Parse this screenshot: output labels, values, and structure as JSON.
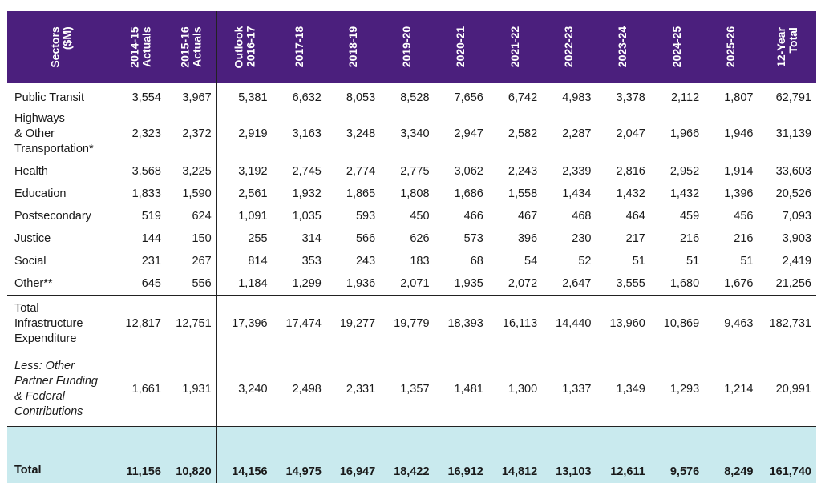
{
  "headers": [
    "Sectors\n($M)",
    "2014-15\nActuals",
    "2015-16\nActuals",
    "Outlook\n2016-17",
    "2017-18",
    "2018-19",
    "2019-20",
    "2020-21",
    "2021-22",
    "2022-23",
    "2023-24",
    "2024-25",
    "2025-26",
    "12-Year\nTotal"
  ],
  "rows": [
    {
      "label": "Public Transit",
      "values": [
        "3,554",
        "3,967",
        "5,381",
        "6,632",
        "8,053",
        "8,528",
        "7,656",
        "6,742",
        "4,983",
        "3,378",
        "2,112",
        "1,807",
        "62,791"
      ]
    },
    {
      "label": "Highways\n& Other\nTransportation*",
      "values": [
        "2,323",
        "2,372",
        "2,919",
        "3,163",
        "3,248",
        "3,340",
        "2,947",
        "2,582",
        "2,287",
        "2,047",
        "1,966",
        "1,946",
        "31,139"
      ]
    },
    {
      "label": "Health",
      "values": [
        "3,568",
        "3,225",
        "3,192",
        "2,745",
        "2,774",
        "2,775",
        "3,062",
        "2,243",
        "2,339",
        "2,816",
        "2,952",
        "1,914",
        "33,603"
      ]
    },
    {
      "label": "Education",
      "values": [
        "1,833",
        "1,590",
        "2,561",
        "1,932",
        "1,865",
        "1,808",
        "1,686",
        "1,558",
        "1,434",
        "1,432",
        "1,432",
        "1,396",
        "20,526"
      ]
    },
    {
      "label": "Postsecondary",
      "values": [
        "519",
        "624",
        "1,091",
        "1,035",
        "593",
        "450",
        "466",
        "467",
        "468",
        "464",
        "459",
        "456",
        "7,093"
      ]
    },
    {
      "label": "Justice",
      "values": [
        "144",
        "150",
        "255",
        "314",
        "566",
        "626",
        "573",
        "396",
        "230",
        "217",
        "216",
        "216",
        "3,903"
      ]
    },
    {
      "label": "Social",
      "values": [
        "231",
        "267",
        "814",
        "353",
        "243",
        "183",
        "68",
        "54",
        "52",
        "51",
        "51",
        "51",
        "2,419"
      ]
    },
    {
      "label": "Other**",
      "values": [
        "645",
        "556",
        "1,184",
        "1,299",
        "1,936",
        "2,071",
        "1,935",
        "2,072",
        "2,647",
        "3,555",
        "1,680",
        "1,676",
        "21,256"
      ]
    }
  ],
  "total_infra": {
    "label": "Total\nInfrastructure\nExpenditure",
    "values": [
      "12,817",
      "12,751",
      "17,396",
      "17,474",
      "19,277",
      "19,779",
      "18,393",
      "16,113",
      "14,440",
      "13,960",
      "10,869",
      "9,463",
      "182,731"
    ]
  },
  "less": {
    "label": "Less: Other\nPartner Funding\n& Federal\nContributions",
    "values": [
      "1,661",
      "1,931",
      "3,240",
      "2,498",
      "2,331",
      "1,357",
      "1,481",
      "1,300",
      "1,337",
      "1,349",
      "1,293",
      "1,214",
      "20,991"
    ]
  },
  "total": {
    "label": "Total",
    "values": [
      "11,156",
      "10,820",
      "14,156",
      "14,975",
      "16,947",
      "18,422",
      "16,912",
      "14,812",
      "13,103",
      "12,611",
      "9,576",
      "8,249",
      "161,740"
    ]
  },
  "colors": {
    "header_bg": "#4b1f7d",
    "total_bg": "#c9eaee"
  }
}
